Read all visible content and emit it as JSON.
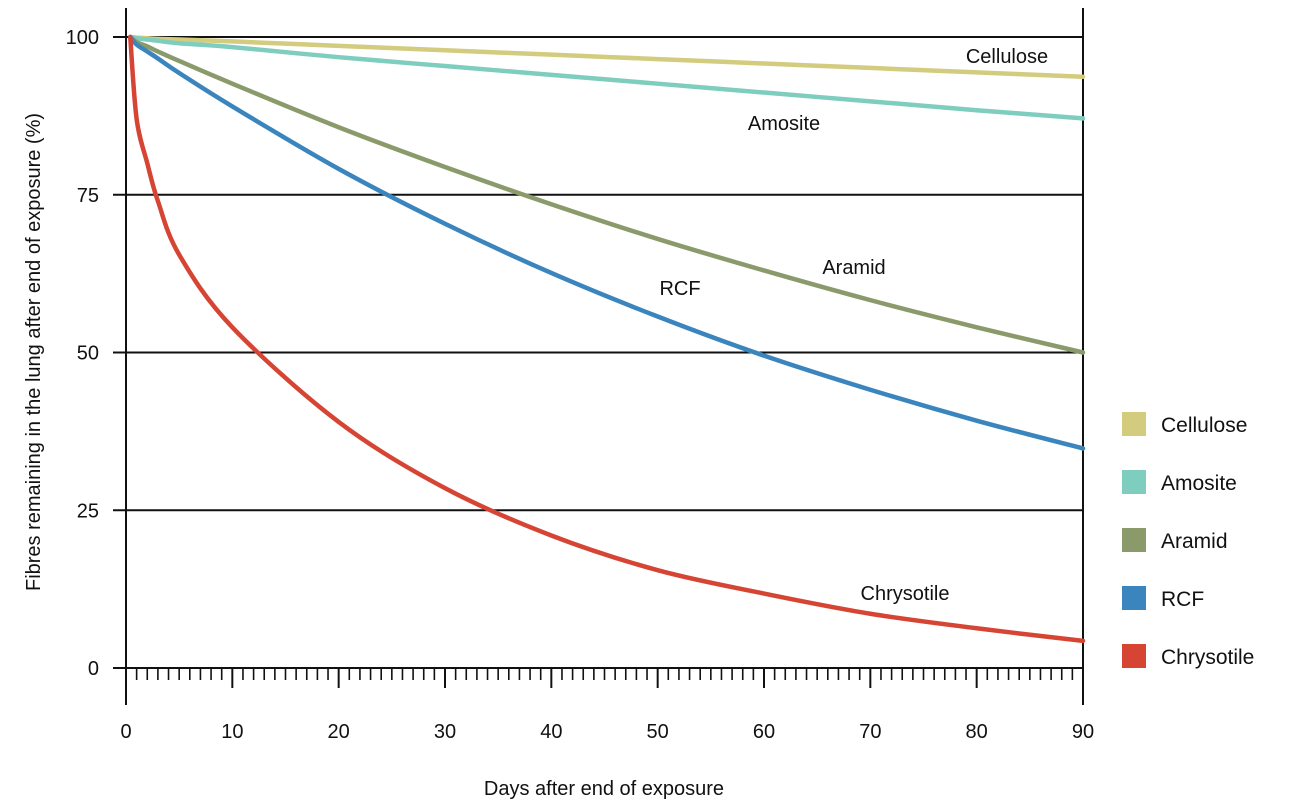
{
  "chart_data": {
    "type": "line",
    "xlabel": "Days after end of exposure",
    "ylabel": "Fibres remaining in the lung after end of exposure (%)",
    "xlim": [
      0,
      90
    ],
    "ylim": [
      0,
      100
    ],
    "x_ticks": [
      0,
      10,
      20,
      30,
      40,
      50,
      60,
      70,
      80,
      90
    ],
    "y_ticks": [
      0,
      25,
      50,
      75,
      100
    ],
    "grid": "horizontal lines at y ticks",
    "legend_position": "right",
    "x": [
      0,
      1,
      2,
      3,
      5,
      10,
      20,
      30,
      40,
      50,
      60,
      70,
      80,
      90
    ],
    "series": [
      {
        "name": "Cellulose",
        "color": "#d3cb7e",
        "values": [
          100,
          99.9,
          99.8,
          99.7,
          99.6,
          99.3,
          98.6,
          97.9,
          97.2,
          96.5,
          95.8,
          95.1,
          94.4,
          93.7
        ]
      },
      {
        "name": "Amosite",
        "color": "#7ecdbf",
        "values": [
          100,
          99.8,
          99.6,
          99.4,
          99.0,
          98.4,
          96.8,
          95.4,
          94.0,
          92.6,
          91.2,
          89.8,
          88.4,
          87.1
        ]
      },
      {
        "name": "Aramid",
        "color": "#8b9a6b",
        "values": [
          100,
          99.2,
          98.5,
          97.7,
          96.2,
          92.6,
          85.7,
          79.4,
          73.5,
          68.0,
          63.0,
          58.3,
          54.0,
          50.0
        ]
      },
      {
        "name": "RCF",
        "color": "#3a85bd",
        "values": [
          100,
          98.8,
          97.7,
          96.6,
          94.3,
          89.0,
          79.1,
          70.4,
          62.6,
          55.7,
          49.5,
          44.1,
          39.2,
          34.8
        ]
      },
      {
        "name": "Chrysotile",
        "color": "#d64534",
        "values": [
          100,
          87.0,
          80.0,
          74.0,
          65.5,
          54.0,
          39.0,
          28.5,
          21.0,
          15.5,
          11.8,
          8.6,
          6.3,
          4.3
        ]
      }
    ]
  }
}
